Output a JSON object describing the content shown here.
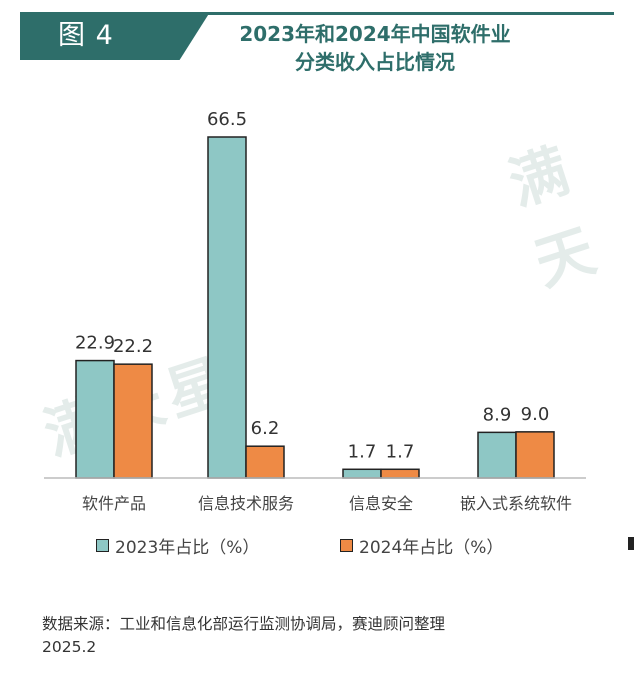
{
  "figure_tag": "图 4",
  "title_line1": "2023年和2024年中国软件业",
  "title_line2": "分类收入占比情况",
  "watermark_logo": "满天星",
  "colors": {
    "series_2023": "#8ec7c5",
    "series_2024": "#ee8a45",
    "accent": "#2e6e6a"
  },
  "chart_data": {
    "type": "bar",
    "categories": [
      "软件产品",
      "信息技术服务",
      "信息安全",
      "嵌入式系统软件"
    ],
    "series": [
      {
        "name": "2023年占比（%）",
        "values": [
          22.9,
          66.5,
          1.7,
          8.9
        ],
        "labels": [
          "22.9",
          "66.5",
          "1.7",
          "8.9"
        ]
      },
      {
        "name": "2024年占比（%）",
        "values": [
          22.2,
          6.2,
          1.7,
          9.0
        ],
        "labels": [
          "22.2",
          "6.2",
          "1.7",
          "9.0"
        ]
      }
    ],
    "ylim": [
      0,
      66.5
    ],
    "grid": false,
    "legend_position": "bottom"
  },
  "source": "数据来源：工业和信息化部运行监测协调局，赛迪顾问整理",
  "date": "2025.2"
}
